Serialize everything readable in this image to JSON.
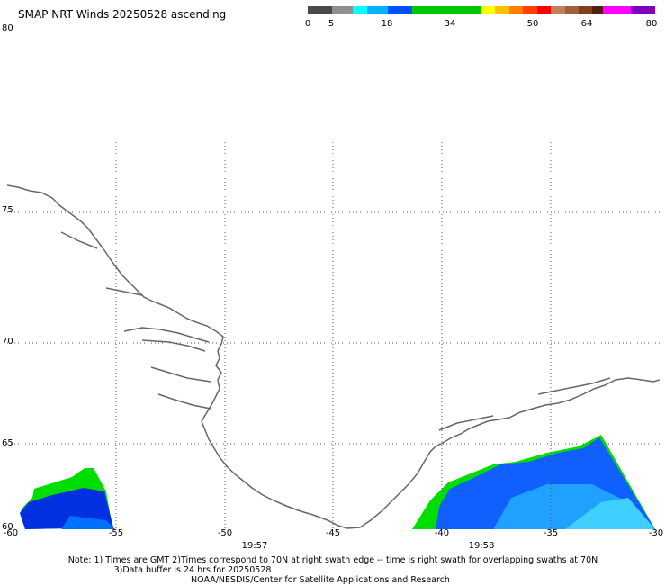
{
  "title": "SMAP NRT Winds 20250528 ascending",
  "top_lat_label": "80",
  "colorbar": {
    "ticks": [
      "0",
      "5",
      "18",
      "34",
      "50",
      "64",
      "80"
    ],
    "tick_values": [
      0,
      5,
      18,
      34,
      50,
      64,
      80
    ],
    "range": [
      0,
      80
    ],
    "colors": [
      {
        "from": 0,
        "to": 5,
        "color": "#5a5a5a"
      },
      {
        "from": 5,
        "to": 18,
        "color": "#19a0ff"
      },
      {
        "from": 18,
        "to": 34,
        "color": "#18c818"
      },
      {
        "from": 34,
        "to": 50,
        "color": "#ff7010"
      },
      {
        "from": 50,
        "to": 64,
        "color": "#a0583a"
      },
      {
        "from": 64,
        "to": 80,
        "color": "#c020c0"
      }
    ]
  },
  "map": {
    "lat_labels": [
      "75",
      "70",
      "65",
      "60"
    ],
    "lat_values": [
      75,
      70,
      65,
      60
    ],
    "lon_labels": [
      "-60",
      "-55",
      "-50",
      "-45",
      "-40",
      "-35",
      "-30"
    ],
    "lon_values": [
      -60,
      -55,
      -50,
      -45,
      -40,
      -35,
      -30
    ],
    "lon_range": [
      -60,
      -30
    ],
    "lat_range": [
      60,
      77
    ],
    "grid": true,
    "coastline_color": "#666666",
    "times": [
      "19:57",
      "19:58"
    ]
  },
  "notes": {
    "line1": "Note: 1) Times are GMT 2)Times correspond to 70N at right swath edge -- time is right swath for overlapping swaths at 70N",
    "line2": "3)Data buffer is 24 hrs for 20250528",
    "line3": "NOAA/NESDIS/Center for Satellite Applications and Research"
  }
}
